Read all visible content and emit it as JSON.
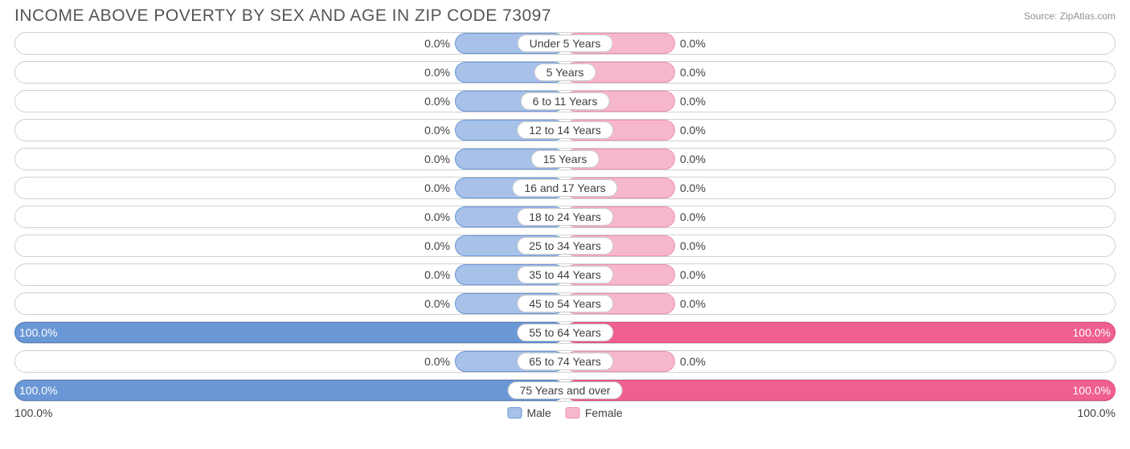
{
  "title": "INCOME ABOVE POVERTY BY SEX AND AGE IN ZIP CODE 73097",
  "source": "Source: ZipAtlas.com",
  "axis": {
    "left": "100.0%",
    "right": "100.0%"
  },
  "legend": {
    "male": "Male",
    "female": "Female"
  },
  "colors": {
    "male_fill": "#a7c1e8",
    "male_border": "#6a97d6",
    "male_full_fill": "#6a97d6",
    "male_full_border": "#4e7ec2",
    "female_fill": "#f7b7cb",
    "female_border": "#ec8fae",
    "female_full_fill": "#ef5f92",
    "female_full_border": "#e2447c",
    "track_border": "#d0d0d0",
    "text": "#404040",
    "title_color": "#555555",
    "source_color": "#909090",
    "background": "#ffffff"
  },
  "min_bar_pct": 10,
  "rows": [
    {
      "age": "Under 5 Years",
      "male": 0.0,
      "female": 0.0,
      "male_label": "0.0%",
      "female_label": "0.0%"
    },
    {
      "age": "5 Years",
      "male": 0.0,
      "female": 0.0,
      "male_label": "0.0%",
      "female_label": "0.0%"
    },
    {
      "age": "6 to 11 Years",
      "male": 0.0,
      "female": 0.0,
      "male_label": "0.0%",
      "female_label": "0.0%"
    },
    {
      "age": "12 to 14 Years",
      "male": 0.0,
      "female": 0.0,
      "male_label": "0.0%",
      "female_label": "0.0%"
    },
    {
      "age": "15 Years",
      "male": 0.0,
      "female": 0.0,
      "male_label": "0.0%",
      "female_label": "0.0%"
    },
    {
      "age": "16 and 17 Years",
      "male": 0.0,
      "female": 0.0,
      "male_label": "0.0%",
      "female_label": "0.0%"
    },
    {
      "age": "18 to 24 Years",
      "male": 0.0,
      "female": 0.0,
      "male_label": "0.0%",
      "female_label": "0.0%"
    },
    {
      "age": "25 to 34 Years",
      "male": 0.0,
      "female": 0.0,
      "male_label": "0.0%",
      "female_label": "0.0%"
    },
    {
      "age": "35 to 44 Years",
      "male": 0.0,
      "female": 0.0,
      "male_label": "0.0%",
      "female_label": "0.0%"
    },
    {
      "age": "45 to 54 Years",
      "male": 0.0,
      "female": 0.0,
      "male_label": "0.0%",
      "female_label": "0.0%"
    },
    {
      "age": "55 to 64 Years",
      "male": 100.0,
      "female": 100.0,
      "male_label": "100.0%",
      "female_label": "100.0%"
    },
    {
      "age": "65 to 74 Years",
      "male": 0.0,
      "female": 0.0,
      "male_label": "0.0%",
      "female_label": "0.0%"
    },
    {
      "age": "75 Years and over",
      "male": 100.0,
      "female": 100.0,
      "male_label": "100.0%",
      "female_label": "100.0%"
    }
  ]
}
